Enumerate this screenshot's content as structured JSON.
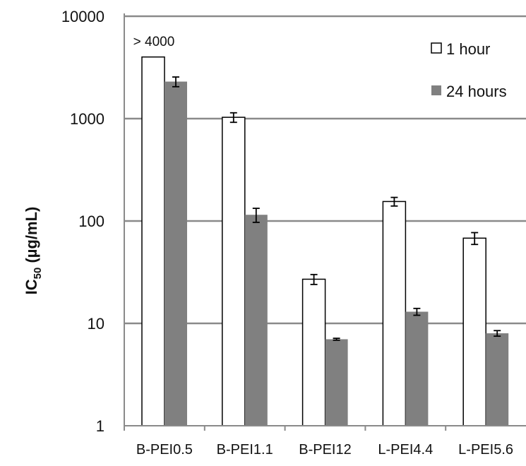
{
  "chart_data": {
    "type": "bar",
    "scale": "log",
    "ylabel": {
      "main": "IC",
      "sub": "50",
      "rest": " (µg/mL)"
    },
    "ylim": [
      1,
      10000
    ],
    "yticks": [
      {
        "value": 1,
        "label": "1"
      },
      {
        "value": 10,
        "label": "10"
      },
      {
        "value": 100,
        "label": "100"
      },
      {
        "value": 1000,
        "label": "1000"
      },
      {
        "value": 10000,
        "label": "10000"
      }
    ],
    "grid": true,
    "legend_position": "top-right",
    "categories": [
      "B-PEI0.5",
      "B-PEI1.1",
      "B-PEI12",
      "L-PEI4.4",
      "L-PEI5.6"
    ],
    "series": [
      {
        "name": "1 hour",
        "color": "#ffffff",
        "values": [
          4000,
          1030,
          27,
          155,
          68
        ],
        "errors": [
          0,
          110,
          3,
          15,
          9
        ]
      },
      {
        "name": "24 hours",
        "color": "#808080",
        "values": [
          2300,
          115,
          7,
          13,
          8
        ],
        "errors": [
          250,
          18,
          0.15,
          1,
          0.5
        ]
      }
    ],
    "annotations": [
      {
        "text": "> 4000",
        "category": "B-PEI0.5",
        "series": "1 hour"
      }
    ]
  }
}
